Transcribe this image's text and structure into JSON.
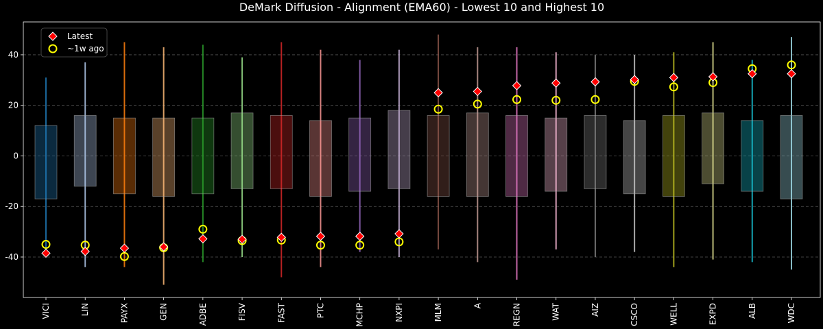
{
  "chart_data": {
    "type": "box",
    "title": "DeMark Diffusion - Alignment (EMA60) - Lowest 10 and Highest 10",
    "xlabel": "",
    "ylabel": "",
    "ylim": [
      -56,
      53
    ],
    "yticks": [
      -40,
      -20,
      0,
      20,
      40
    ],
    "grid": "horizontal dashed",
    "legend": {
      "placement": "top-left",
      "entries": [
        {
          "label": "Latest",
          "marker": "diamond",
          "fill": "#ff0000",
          "edge": "#ffffff"
        },
        {
          "label": "~1w ago",
          "marker": "circle",
          "fill": "none",
          "edge": "#ffff00"
        }
      ]
    },
    "categories": [
      "VICI",
      "LIN",
      "PAYX",
      "GEN",
      "ADBE",
      "FISV",
      "FAST",
      "PTC",
      "MCHP",
      "NXPI",
      "MLM",
      "A",
      "REGN",
      "WAT",
      "AIZ",
      "CSCO",
      "WELL",
      "EXPD",
      "ALB",
      "WDC"
    ],
    "colors": [
      "#1f77b4",
      "#aec7e8",
      "#ff7f0e",
      "#ffbb78",
      "#2ca02c",
      "#98df8a",
      "#d62728",
      "#ff9896",
      "#9467bd",
      "#c5b0d5",
      "#8c564b",
      "#c49c94",
      "#e377c2",
      "#f7b6d2",
      "#7f7f7f",
      "#c7c7c7",
      "#bcbd22",
      "#dbdb8d",
      "#17becf",
      "#9edae5"
    ],
    "whisker_low": [
      -38,
      -44,
      -44,
      -51,
      -42,
      -40,
      -48,
      -44,
      -38,
      -40,
      -37,
      -42,
      -49,
      -37,
      -40,
      -38,
      -44,
      -41,
      -42,
      -45
    ],
    "whisker_high": [
      31,
      37,
      45,
      43,
      44,
      39,
      45,
      42,
      38,
      42,
      48,
      43,
      43,
      41,
      40,
      40,
      41,
      45,
      38,
      47
    ],
    "box_low": [
      -17,
      -12,
      -15,
      -16,
      -15,
      -13,
      -13,
      -16,
      -14,
      -13,
      -16,
      -16,
      -16,
      -14,
      -13,
      -15,
      -16,
      -11,
      -14,
      -17
    ],
    "box_high": [
      12,
      16,
      15,
      15,
      15,
      17,
      16,
      14,
      15,
      18,
      16,
      17,
      16,
      15,
      16,
      14,
      16,
      17,
      14,
      16
    ],
    "latest": [
      -38.5,
      -37.8,
      -36.5,
      -36,
      -32.8,
      -33,
      -32.2,
      -31.8,
      -31.8,
      -30.8,
      25,
      25.5,
      27.8,
      28.8,
      29.3,
      30.2,
      31,
      31.3,
      32.5,
      32.5
    ],
    "week_ago": [
      -35,
      -35.3,
      -39.8,
      -36.3,
      -29,
      -33.5,
      -33.3,
      -35.3,
      -35.3,
      -34,
      18.5,
      20.5,
      22.3,
      22,
      22.3,
      29.5,
      27.3,
      29,
      34.5,
      36
    ]
  }
}
